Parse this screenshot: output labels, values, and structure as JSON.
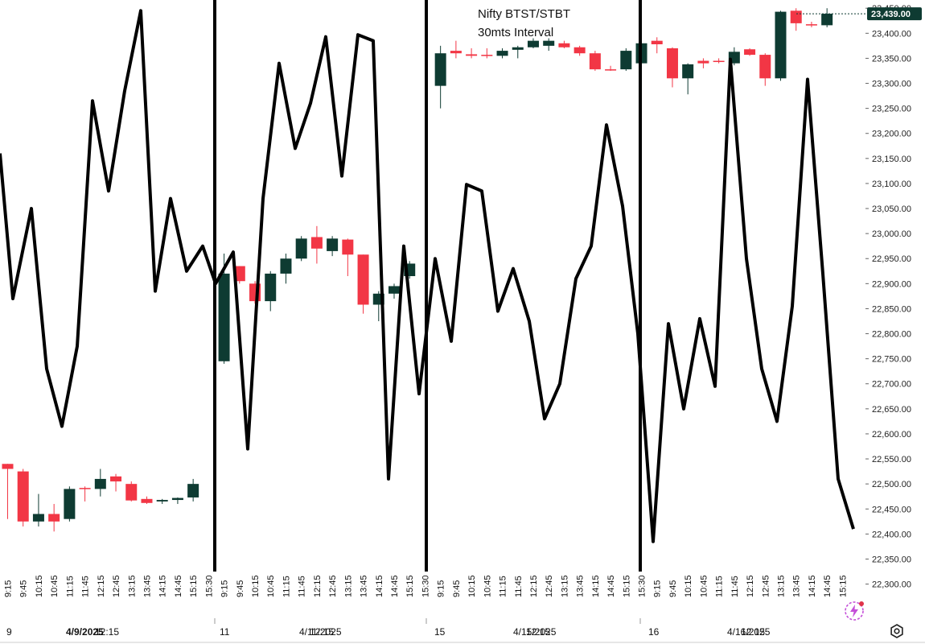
{
  "chart_data": {
    "type": "candlestick",
    "title": "Nifty BTST/STBT",
    "subtitle": "30mts Interval",
    "ylim": [
      22280,
      23460
    ],
    "y_ticks": [
      22300,
      22350,
      22400,
      22450,
      22500,
      22550,
      22600,
      22650,
      22700,
      22750,
      22800,
      22850,
      22900,
      22950,
      23000,
      23050,
      23100,
      23150,
      23200,
      23250,
      23300,
      23350,
      23400,
      23450
    ],
    "y_tick_labels": [
      "22,300.00",
      "22,350.00",
      "22,400.00",
      "22,450.00",
      "22,500.00",
      "22,550.00",
      "22,600.00",
      "22,650.00",
      "22,700.00",
      "22,750.00",
      "22,800.00",
      "22,850.00",
      "22,900.00",
      "22,950.00",
      "23,000.00",
      "23,050.00",
      "23,100.00",
      "23,150.00",
      "23,200.00",
      "23,250.00",
      "23,300.00",
      "23,350.00",
      "23,400.00",
      "23,450.00"
    ],
    "last_price": 23439,
    "last_price_label": "23,439.00",
    "time_labels": [
      "9:15",
      "9:45",
      "10:15",
      "10:45",
      "11:15",
      "11:45",
      "12:15",
      "12:45",
      "13:15",
      "13:45",
      "14:15",
      "14:45",
      "15:15",
      "15:30",
      "9:15",
      "9:45",
      "10:15",
      "10:45",
      "11:15",
      "11:45",
      "12:15",
      "12:45",
      "13:15",
      "13:45",
      "14:15",
      "14:45",
      "15:15",
      "15:30",
      "9:15",
      "9:45",
      "10:15",
      "10:45",
      "11:15",
      "11:45",
      "12:15",
      "12:45",
      "13:15",
      "13:45",
      "14:15",
      "14:45",
      "15:15",
      "15:30",
      "9:15",
      "9:45",
      "10:15",
      "10:45",
      "11:15",
      "11:45",
      "12:15",
      "12:45",
      "13:15",
      "13:45",
      "14:15",
      "14:45",
      "15:15",
      "15:30"
    ],
    "date_axis": [
      {
        "label": "9",
        "bold": false
      },
      {
        "label": "4/9/2025",
        "bold": true
      },
      {
        "label": "12:15",
        "bold": false
      },
      {
        "label": "11",
        "bold": false
      },
      {
        "label": "4/11/2025",
        "bold": false
      },
      {
        "label": "12:15",
        "bold": false
      },
      {
        "label": "15",
        "bold": false
      },
      {
        "label": "4/15/2025",
        "bold": false
      },
      {
        "label": "12:15",
        "bold": false
      },
      {
        "label": "16",
        "bold": false
      },
      {
        "label": "4/16/2025",
        "bold": false
      },
      {
        "label": "12:15",
        "bold": false
      }
    ],
    "candles": [
      {
        "o": 22540,
        "h": 22540,
        "l": 22430,
        "c": 22530
      },
      {
        "o": 22525,
        "h": 22530,
        "l": 22415,
        "c": 22425
      },
      {
        "o": 22425,
        "h": 22480,
        "l": 22415,
        "c": 22440
      },
      {
        "o": 22440,
        "h": 22460,
        "l": 22405,
        "c": 22425
      },
      {
        "o": 22430,
        "h": 22495,
        "l": 22425,
        "c": 22490
      },
      {
        "o": 22492,
        "h": 22495,
        "l": 22465,
        "c": 22490
      },
      {
        "o": 22490,
        "h": 22530,
        "l": 22475,
        "c": 22510
      },
      {
        "o": 22515,
        "h": 22520,
        "l": 22485,
        "c": 22505
      },
      {
        "o": 22500,
        "h": 22505,
        "l": 22465,
        "c": 22467
      },
      {
        "o": 22470,
        "h": 22475,
        "l": 22460,
        "c": 22462
      },
      {
        "o": 22465,
        "h": 22470,
        "l": 22460,
        "c": 22468
      },
      {
        "o": 22468,
        "h": 22473,
        "l": 22460,
        "c": 22472
      },
      {
        "o": 22473,
        "h": 22510,
        "l": 22465,
        "c": 22500
      },
      {
        "o": 22745,
        "h": 22960,
        "l": 22740,
        "c": 22920
      },
      {
        "o": 22935,
        "h": 22935,
        "l": 22900,
        "c": 22905
      },
      {
        "o": 22900,
        "h": 22905,
        "l": 22860,
        "c": 22865
      },
      {
        "o": 22865,
        "h": 22925,
        "l": 22845,
        "c": 22920
      },
      {
        "o": 22920,
        "h": 22960,
        "l": 22900,
        "c": 22950
      },
      {
        "o": 22950,
        "h": 22995,
        "l": 22945,
        "c": 22990
      },
      {
        "o": 22993,
        "h": 23015,
        "l": 22940,
        "c": 22970
      },
      {
        "o": 22965,
        "h": 22995,
        "l": 22955,
        "c": 22990
      },
      {
        "o": 22988,
        "h": 22990,
        "l": 22915,
        "c": 22958
      },
      {
        "o": 22958,
        "h": 22958,
        "l": 22840,
        "c": 22858
      },
      {
        "o": 22858,
        "h": 22885,
        "l": 22825,
        "c": 22880
      },
      {
        "o": 22880,
        "h": 22900,
        "l": 22870,
        "c": 22895
      },
      {
        "o": 22915,
        "h": 22945,
        "l": 22910,
        "c": 22940
      },
      {
        "o": 23295,
        "h": 23375,
        "l": 23250,
        "c": 23360
      },
      {
        "o": 23365,
        "h": 23385,
        "l": 23350,
        "c": 23360
      },
      {
        "o": 23358,
        "h": 23370,
        "l": 23350,
        "c": 23355
      },
      {
        "o": 23357,
        "h": 23370,
        "l": 23350,
        "c": 23355
      },
      {
        "o": 23355,
        "h": 23370,
        "l": 23350,
        "c": 23365
      },
      {
        "o": 23367,
        "h": 23375,
        "l": 23350,
        "c": 23372
      },
      {
        "o": 23372,
        "h": 23390,
        "l": 23370,
        "c": 23385
      },
      {
        "o": 23375,
        "h": 23390,
        "l": 23365,
        "c": 23385
      },
      {
        "o": 23380,
        "h": 23385,
        "l": 23370,
        "c": 23372
      },
      {
        "o": 23372,
        "h": 23375,
        "l": 23355,
        "c": 23360
      },
      {
        "o": 23360,
        "h": 23365,
        "l": 23325,
        "c": 23328
      },
      {
        "o": 23328,
        "h": 23335,
        "l": 23325,
        "c": 23326
      },
      {
        "o": 23328,
        "h": 23370,
        "l": 23325,
        "c": 23365
      },
      {
        "o": 23340,
        "h": 23385,
        "l": 23290,
        "c": 23380
      },
      {
        "o": 23385,
        "h": 23392,
        "l": 23360,
        "c": 23378
      },
      {
        "o": 23370,
        "h": 23372,
        "l": 23292,
        "c": 23310
      },
      {
        "o": 23310,
        "h": 23340,
        "l": 23278,
        "c": 23338
      },
      {
        "o": 23345,
        "h": 23350,
        "l": 23330,
        "c": 23340
      },
      {
        "o": 23345,
        "h": 23350,
        "l": 23340,
        "c": 23343
      },
      {
        "o": 23340,
        "h": 23372,
        "l": 23336,
        "c": 23363
      },
      {
        "o": 23368,
        "h": 23370,
        "l": 23355,
        "c": 23357
      },
      {
        "o": 23357,
        "h": 23360,
        "l": 23295,
        "c": 23310
      },
      {
        "o": 23310,
        "h": 23445,
        "l": 23305,
        "c": 23443
      },
      {
        "o": 23445,
        "h": 23450,
        "l": 23405,
        "c": 23420
      },
      {
        "o": 23418,
        "h": 23423,
        "l": 23412,
        "c": 23416
      },
      {
        "o": 23416,
        "h": 23450,
        "l": 23412,
        "c": 23439
      }
    ],
    "overlay_line": [
      [
        0,
        23160
      ],
      [
        16,
        22870
      ],
      [
        39,
        23050
      ],
      [
        58,
        22730
      ],
      [
        77,
        22615
      ],
      [
        96,
        22775
      ],
      [
        115,
        23265
      ],
      [
        135,
        23085
      ],
      [
        155,
        23285
      ],
      [
        175,
        23445
      ],
      [
        193,
        22885
      ],
      [
        212,
        23070
      ],
      [
        232,
        22925
      ],
      [
        252,
        22975
      ],
      [
        268,
        22900
      ],
      [
        290,
        22963
      ],
      [
        308,
        22570
      ],
      [
        327,
        23070
      ],
      [
        347,
        23340
      ],
      [
        367,
        23170
      ],
      [
        386,
        23260
      ],
      [
        405,
        23393
      ],
      [
        425,
        23115
      ],
      [
        445,
        23397
      ],
      [
        464,
        23385
      ],
      [
        483,
        22510
      ],
      [
        502,
        22975
      ],
      [
        521,
        22680
      ],
      [
        541,
        22950
      ],
      [
        561,
        22785
      ],
      [
        580,
        23098
      ],
      [
        599,
        23085
      ],
      [
        619,
        22845
      ],
      [
        638,
        22930
      ],
      [
        658,
        22825
      ],
      [
        677,
        22630
      ],
      [
        696,
        22700
      ],
      [
        716,
        22910
      ],
      [
        735,
        22975
      ],
      [
        754,
        23217
      ],
      [
        774,
        23055
      ],
      [
        793,
        22800
      ],
      [
        812,
        22385
      ],
      [
        831,
        22820
      ],
      [
        850,
        22650
      ],
      [
        870,
        22830
      ],
      [
        889,
        22695
      ],
      [
        908,
        23348
      ],
      [
        928,
        22950
      ],
      [
        947,
        22730
      ],
      [
        966,
        22625
      ],
      [
        985,
        22855
      ],
      [
        1004,
        23308
      ],
      [
        1023,
        22920
      ],
      [
        1042,
        22510
      ],
      [
        1061,
        22410
      ]
    ],
    "dividers": [
      267,
      530,
      796
    ]
  }
}
